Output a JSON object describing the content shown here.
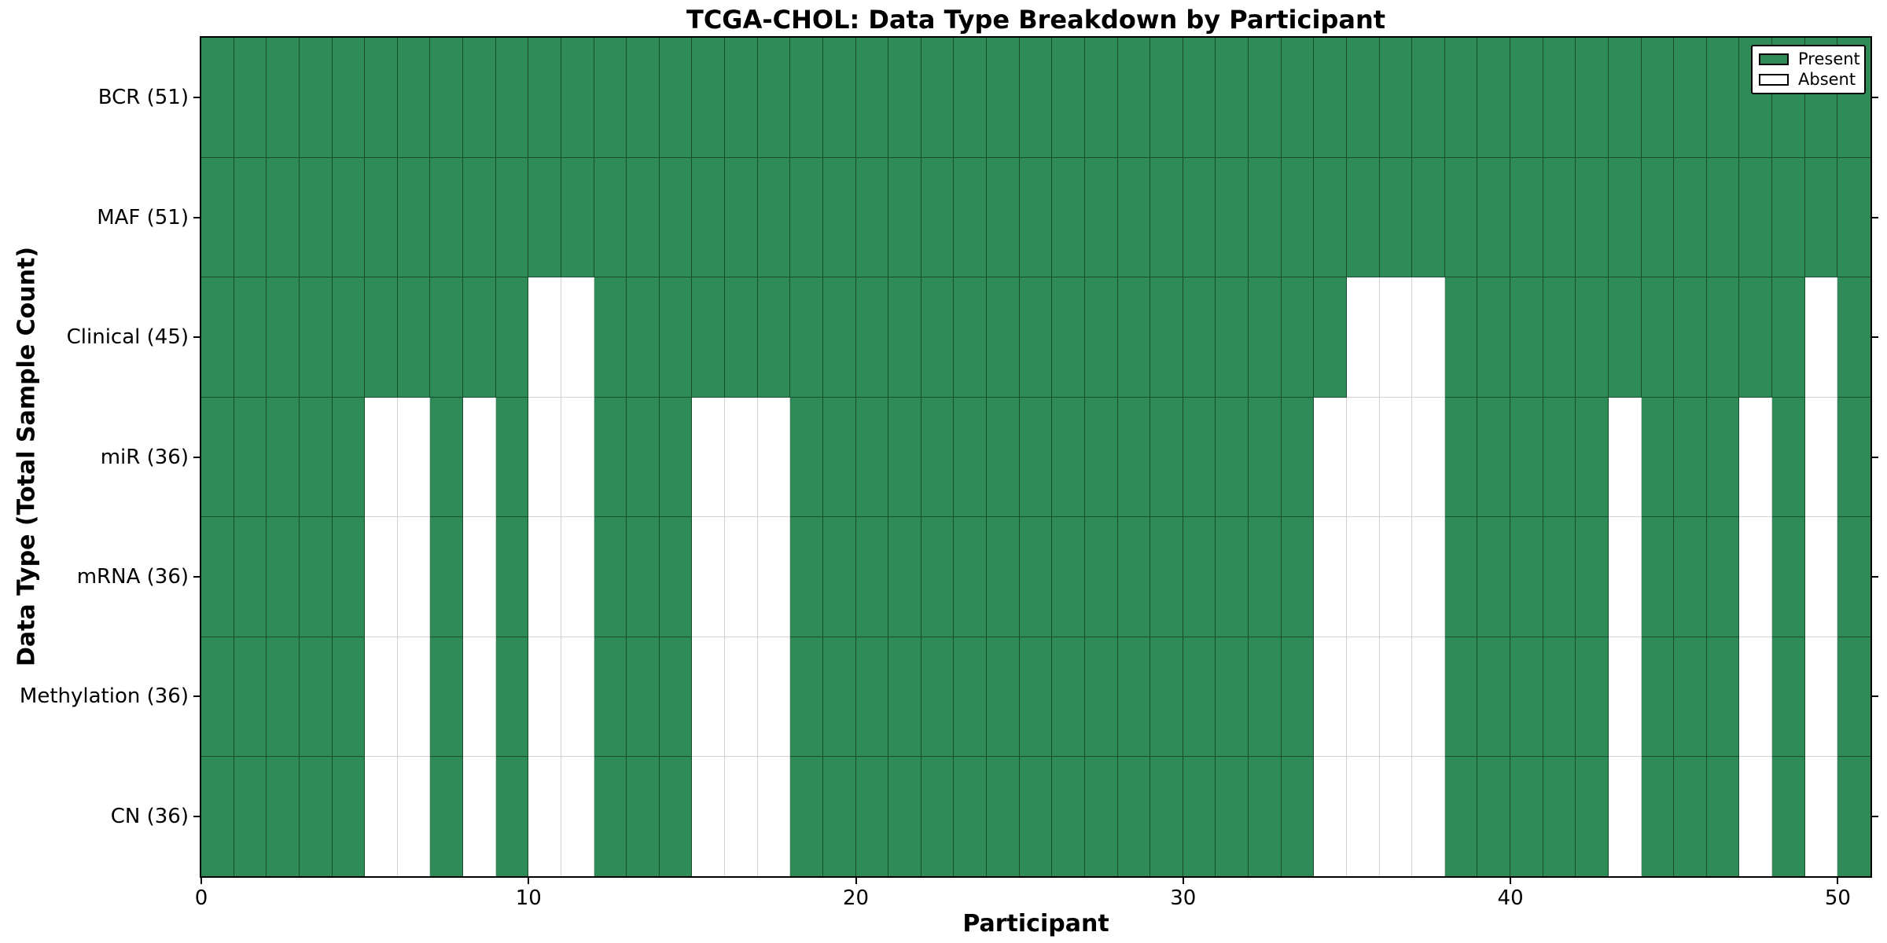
{
  "chart_data": {
    "type": "heatmap",
    "title": "TCGA-CHOL: Data Type Breakdown by Participant",
    "xlabel": "Participant",
    "ylabel": "Data Type (Total Sample Count)",
    "x_range": [
      0,
      51
    ],
    "x_ticks": [
      0,
      10,
      20,
      30,
      40,
      50
    ],
    "n_participants": 51,
    "rows": [
      {
        "label": "BCR (51)",
        "total": 51,
        "absent_participants": []
      },
      {
        "label": "MAF (51)",
        "total": 51,
        "absent_participants": []
      },
      {
        "label": "Clinical (45)",
        "total": 45,
        "absent_participants": [
          10,
          11,
          35,
          36,
          37,
          49
        ]
      },
      {
        "label": "miR (36)",
        "total": 36,
        "absent_participants": [
          5,
          6,
          8,
          10,
          11,
          15,
          16,
          17,
          34,
          35,
          36,
          37,
          43,
          47,
          49
        ]
      },
      {
        "label": "mRNA (36)",
        "total": 36,
        "absent_participants": [
          5,
          6,
          8,
          10,
          11,
          15,
          16,
          17,
          34,
          35,
          36,
          37,
          43,
          47,
          49
        ]
      },
      {
        "label": "Methylation (36)",
        "total": 36,
        "absent_participants": [
          5,
          6,
          8,
          10,
          11,
          15,
          16,
          17,
          34,
          35,
          36,
          37,
          43,
          47,
          49
        ]
      },
      {
        "label": "CN (36)",
        "total": 36,
        "absent_participants": [
          5,
          6,
          8,
          10,
          11,
          15,
          16,
          17,
          34,
          35,
          36,
          37,
          43,
          47,
          49
        ]
      }
    ],
    "legend": [
      {
        "label": "Present",
        "color": "#2e8b57"
      },
      {
        "label": "Absent",
        "color": "#ffffff"
      }
    ],
    "colors": {
      "present": "#2e8b57",
      "absent": "#ffffff",
      "frame": "#000000",
      "cell_edge_on_present": "rgba(0,0,0,0.45)",
      "cell_edge_on_absent": "rgba(0,0,0,0.18)"
    },
    "legend_position": "upper right",
    "grid": true
  }
}
